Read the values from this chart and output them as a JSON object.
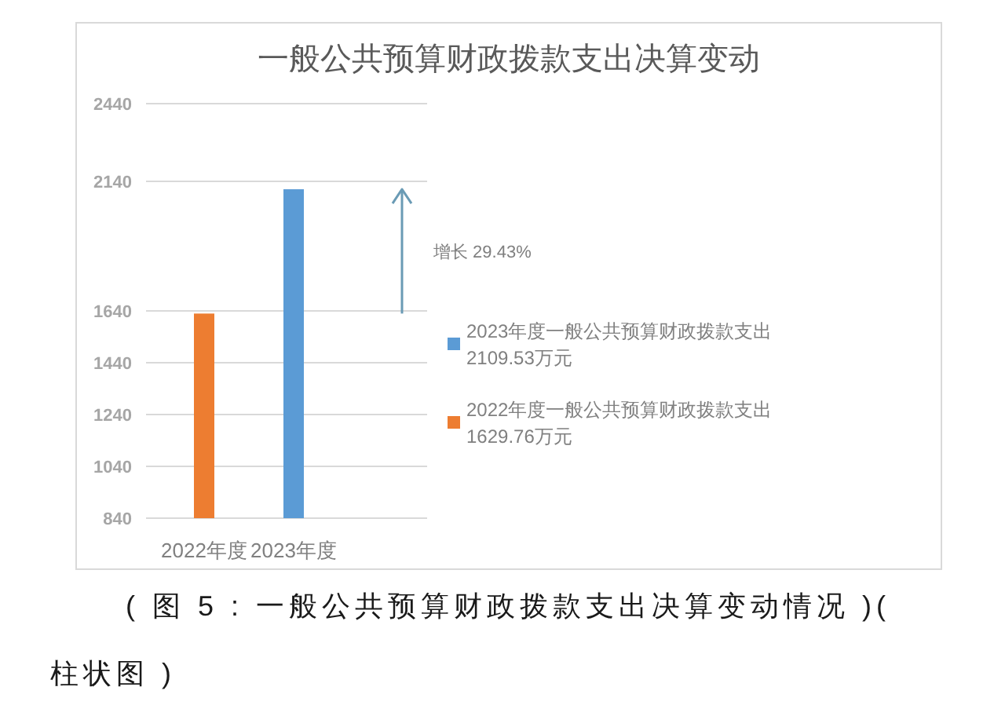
{
  "chart_data": {
    "type": "bar",
    "title": "一般公共预算财政拨款支出决算变动",
    "categories": [
      "2022年度",
      "2023年度"
    ],
    "series": [
      {
        "name": "2023年度一般公共预算财政拨款支出2109.53万元",
        "color": "#5b9bd5",
        "values": [
          null,
          2109.53
        ]
      },
      {
        "name": "2022年度一般公共预算财政拨款支出1629.76万元",
        "color": "#ed7d31",
        "values": [
          1629.76,
          null
        ]
      }
    ],
    "ylim": [
      840,
      2440
    ],
    "yticks": [
      840,
      1040,
      1240,
      1440,
      1640,
      2140,
      2440
    ],
    "grid": "y",
    "legend": "right",
    "annotations": [
      "增长 29.43%",
      "( 图 5 : 一般公共预算财政拨款支出决算变动情况 )( 柱状图 )"
    ]
  }
}
